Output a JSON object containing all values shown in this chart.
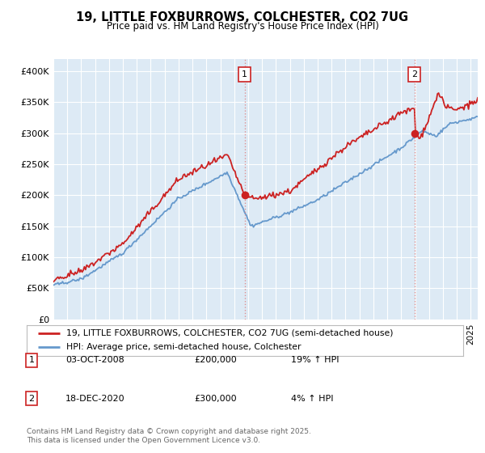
{
  "title": "19, LITTLE FOXBURROWS, COLCHESTER, CO2 7UG",
  "subtitle": "Price paid vs. HM Land Registry's House Price Index (HPI)",
  "bg_color": "#ffffff",
  "plot_bg_color": "#ddeaf5",
  "ylim": [
    0,
    420000
  ],
  "yticks": [
    0,
    50000,
    100000,
    150000,
    200000,
    250000,
    300000,
    350000,
    400000
  ],
  "ytick_labels": [
    "£0",
    "£50K",
    "£100K",
    "£150K",
    "£200K",
    "£250K",
    "£300K",
    "£350K",
    "£400K"
  ],
  "hpi_color": "#6699cc",
  "price_color": "#cc2222",
  "vline_color": "#dd8888",
  "marker1_year": 2008.75,
  "marker1_price": 200000,
  "marker2_year": 2020.96,
  "marker2_price": 300000,
  "transaction1_date": "03-OCT-2008",
  "transaction1_price": "£200,000",
  "transaction1_hpi": "19% ↑ HPI",
  "transaction2_date": "18-DEC-2020",
  "transaction2_price": "£300,000",
  "transaction2_hpi": "4% ↑ HPI",
  "legend_label1": "19, LITTLE FOXBURROWS, COLCHESTER, CO2 7UG (semi-detached house)",
  "legend_label2": "HPI: Average price, semi-detached house, Colchester",
  "footer": "Contains HM Land Registry data © Crown copyright and database right 2025.\nThis data is licensed under the Open Government Licence v3.0.",
  "xmin": 1995.0,
  "xmax": 2025.5
}
